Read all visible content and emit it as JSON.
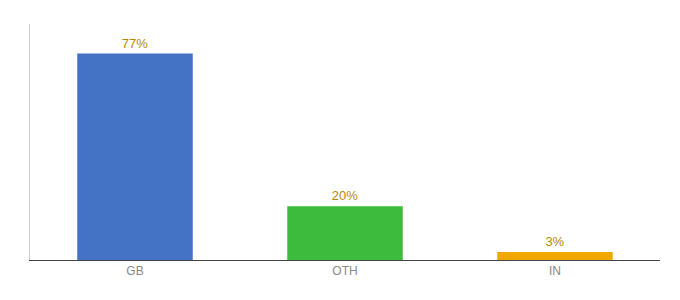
{
  "chart_data": {
    "type": "bar",
    "categories": [
      "GB",
      "OTH",
      "IN"
    ],
    "values": [
      77,
      20,
      3
    ],
    "value_labels": [
      "77%",
      "20%",
      "3%"
    ],
    "colors": [
      "#4472c4",
      "#3dbb3d",
      "#f0a800"
    ],
    "ylim": [
      0,
      88
    ],
    "data_labels": true,
    "tick_labels": "x",
    "grid": false
  }
}
